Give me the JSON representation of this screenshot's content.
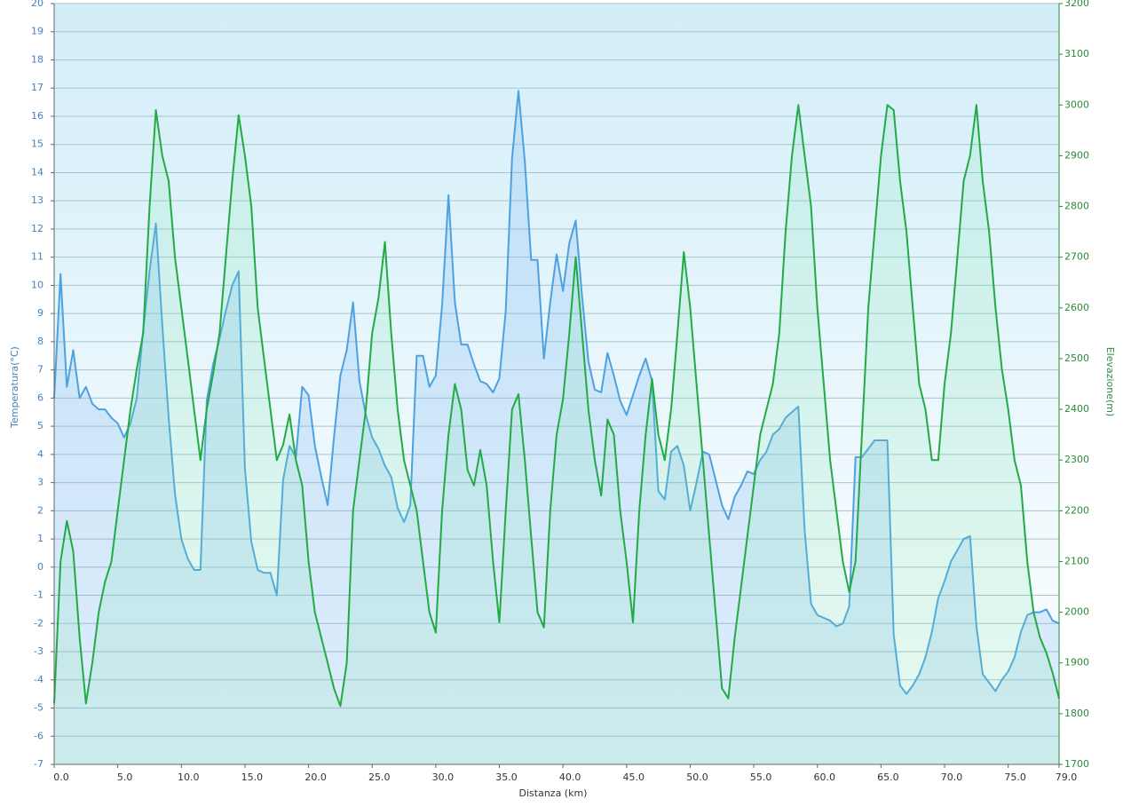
{
  "chart_data": {
    "type": "line",
    "x_label": "Distanza  (km)",
    "y_label": "Temperatura(°C)",
    "y2_label": "Elevazione(m)",
    "grid": true,
    "x": [
      0,
      0.5,
      1,
      1.5,
      2,
      2.5,
      3,
      3.5,
      4,
      4.5,
      5,
      5.5,
      6,
      6.5,
      7,
      7.5,
      8,
      8.5,
      9,
      9.5,
      10,
      10.5,
      11,
      11.5,
      12,
      12.5,
      13,
      13.5,
      14,
      14.5,
      15,
      15.5,
      16,
      16.5,
      17,
      17.5,
      18,
      18.5,
      19,
      19.5,
      20,
      20.5,
      21,
      21.5,
      22,
      22.5,
      23,
      23.5,
      24,
      24.5,
      25,
      25.5,
      26,
      26.5,
      27,
      27.5,
      28,
      28.5,
      29,
      29.5,
      30,
      30.5,
      31,
      31.5,
      32,
      32.5,
      33,
      33.5,
      34,
      34.5,
      35,
      35.5,
      36,
      36.5,
      37,
      37.5,
      38,
      38.5,
      39,
      39.5,
      40,
      40.5,
      41,
      41.5,
      42,
      42.5,
      43,
      43.5,
      44,
      44.5,
      45,
      45.5,
      46,
      46.5,
      47,
      47.5,
      48,
      48.5,
      49,
      49.5,
      50,
      50.5,
      51,
      51.5,
      52,
      52.5,
      53,
      53.5,
      54,
      54.5,
      55,
      55.5,
      56,
      56.5,
      57,
      57.5,
      58,
      58.5,
      59,
      59.5,
      60,
      60.5,
      61,
      61.5,
      62,
      62.5,
      63,
      63.5,
      64,
      64.5,
      65,
      65.5,
      66,
      66.5,
      67,
      67.5,
      68,
      68.5,
      69,
      69.5,
      70,
      70.5,
      71,
      71.5,
      72,
      72.5,
      73,
      73.5,
      74,
      74.5,
      75,
      75.5,
      76,
      76.5,
      77,
      77.5,
      78,
      78.5,
      79
    ],
    "xlim": [
      0,
      79
    ],
    "xticks": [
      {
        "value": 0,
        "label": "0.0"
      },
      {
        "value": 5,
        "label": "5.0"
      },
      {
        "value": 10,
        "label": "10.0"
      },
      {
        "value": 15,
        "label": "15.0"
      },
      {
        "value": 20,
        "label": "20.0"
      },
      {
        "value": 25,
        "label": "25.0"
      },
      {
        "value": 30,
        "label": "30.0"
      },
      {
        "value": 35,
        "label": "35.0"
      },
      {
        "value": 40,
        "label": "40.0"
      },
      {
        "value": 45,
        "label": "45.0"
      },
      {
        "value": 50,
        "label": "50.0"
      },
      {
        "value": 55,
        "label": "55.0"
      },
      {
        "value": 60,
        "label": "60.0"
      },
      {
        "value": 65,
        "label": "65.0"
      },
      {
        "value": 70,
        "label": "70.0"
      },
      {
        "value": 75,
        "label": "75.0"
      },
      {
        "value": 79,
        "label": "79.0"
      }
    ],
    "ylim": [
      -7,
      20
    ],
    "yticks": [
      -7,
      -6,
      -5,
      -4,
      -3,
      -2,
      -1,
      0,
      1,
      2,
      3,
      4,
      5,
      6,
      7,
      8,
      9,
      10,
      11,
      12,
      13,
      14,
      15,
      16,
      17,
      18,
      19,
      20
    ],
    "y2lim": [
      1700,
      3200
    ],
    "y2ticks": [
      1700,
      1800,
      1900,
      2000,
      2100,
      2200,
      2300,
      2400,
      2500,
      2600,
      2700,
      2800,
      2900,
      3000,
      3100,
      3200
    ],
    "series": [
      {
        "color": "#4ea1e0",
        "values": [
          6,
          10.4,
          6.4,
          7.7,
          6,
          6.4,
          5.8,
          5.6,
          5.6,
          5.3,
          5.1,
          4.6,
          5.1,
          6,
          8.4,
          10.5,
          12.2,
          8.6,
          5.3,
          2.6,
          1,
          0.3,
          -0.1,
          -0.1,
          5.9,
          7.2,
          8.1,
          9.1,
          10,
          10.5,
          3.5,
          0.9,
          -0.1,
          -0.2,
          -0.2,
          -1,
          3.1,
          4.3,
          3.9,
          6.4,
          6.1,
          4.3,
          3.2,
          2.2,
          4.6,
          6.8,
          7.7,
          9.4,
          6.6,
          5.4,
          4.6,
          4.2,
          3.6,
          3.2,
          2.1,
          1.6,
          2.2,
          7.5,
          7.5,
          6.4,
          6.8,
          9.3,
          13.2,
          9.4,
          7.9,
          7.9,
          7.2,
          6.6,
          6.5,
          6.2,
          6.7,
          9.1,
          14.5,
          16.9,
          14.4,
          10.9,
          10.9,
          7.4,
          9.4,
          11.1,
          9.8,
          11.5,
          12.3,
          9.6,
          7.3,
          6.3,
          6.2,
          7.6,
          6.8,
          5.9,
          5.4,
          6.1,
          6.8,
          7.4,
          6.6,
          2.7,
          2.4,
          4.1,
          4.3,
          3.6,
          2,
          3,
          4.1,
          4,
          3.1,
          2.2,
          1.7,
          2.5,
          2.9,
          3.4,
          3.3,
          3.8,
          4.1,
          4.7,
          4.9,
          5.3,
          5.5,
          5.7,
          1.3,
          -1.3,
          -1.7,
          -1.8,
          -1.9,
          -2.1,
          -2,
          -1.4,
          3.9,
          3.9,
          4.2,
          4.5,
          4.5,
          4.5,
          -2.4,
          -4.2,
          -4.5,
          -4.2,
          -3.8,
          -3.2,
          -2.3,
          -1.1,
          -0.5,
          0.2,
          0.6,
          1,
          1.1,
          -2.1,
          -3.8,
          -4.1,
          -4.4,
          -4,
          -3.7,
          -3.2,
          -2.3,
          -1.7,
          -1.6,
          -1.6,
          -1.5,
          -1.9,
          -2
        ]
      },
      {
        "color": "#22aa44",
        "axis": "y2",
        "values": [
          1820,
          2100,
          2180,
          2120,
          1950,
          1820,
          1900,
          2000,
          2060,
          2100,
          2200,
          2300,
          2400,
          2480,
          2550,
          2800,
          2990,
          2900,
          2850,
          2700,
          2600,
          2500,
          2400,
          2300,
          2400,
          2470,
          2550,
          2700,
          2850,
          2980,
          2900,
          2800,
          2600,
          2500,
          2400,
          2300,
          2330,
          2390,
          2300,
          2250,
          2100,
          2000,
          1950,
          1900,
          1850,
          1815,
          1900,
          2200,
          2300,
          2400,
          2550,
          2620,
          2730,
          2550,
          2400,
          2300,
          2250,
          2200,
          2100,
          2000,
          1960,
          2200,
          2350,
          2450,
          2400,
          2280,
          2250,
          2320,
          2250,
          2100,
          1980,
          2200,
          2400,
          2430,
          2300,
          2150,
          2000,
          1970,
          2200,
          2350,
          2420,
          2550,
          2700,
          2550,
          2400,
          2300,
          2230,
          2380,
          2350,
          2200,
          2100,
          1980,
          2200,
          2350,
          2460,
          2350,
          2300,
          2400,
          2550,
          2710,
          2600,
          2450,
          2300,
          2150,
          2000,
          1850,
          1830,
          1950,
          2050,
          2150,
          2250,
          2350,
          2400,
          2450,
          2550,
          2750,
          2900,
          3000,
          2900,
          2800,
          2600,
          2450,
          2300,
          2200,
          2100,
          2040,
          2100,
          2350,
          2600,
          2750,
          2900,
          3000,
          2990,
          2850,
          2750,
          2600,
          2450,
          2400,
          2300,
          2300,
          2450,
          2550,
          2700,
          2850,
          2900,
          3000,
          2850,
          2750,
          2600,
          2480,
          2400,
          2300,
          2250,
          2100,
          2000,
          1950,
          1920,
          1880,
          1830
        ]
      }
    ]
  }
}
